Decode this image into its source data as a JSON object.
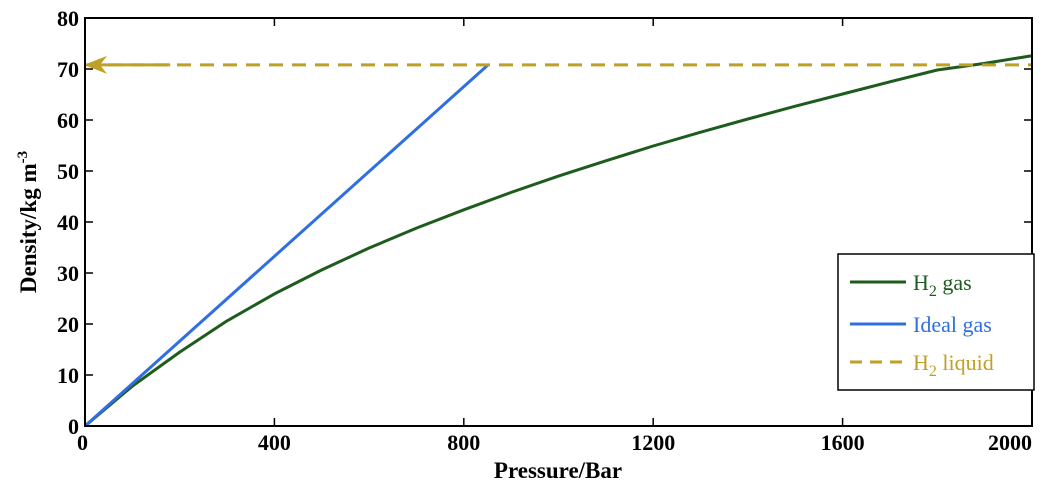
{
  "chart_data": {
    "type": "line",
    "xlabel": "Pressure/Bar",
    "ylabel_main": "Density/kg m",
    "ylabel_sup": "-3",
    "xlim": [
      0,
      2000
    ],
    "ylim": [
      0,
      80
    ],
    "x_ticks": [
      0,
      400,
      800,
      1200,
      1600,
      2000
    ],
    "y_ticks": [
      0,
      10,
      20,
      30,
      40,
      50,
      60,
      70,
      80
    ],
    "grid": false,
    "legend_position": "right",
    "series": [
      {
        "name_main": "H",
        "name_sub": "2",
        "name_rest": " gas",
        "color": "#1e5c1e",
        "style": "solid",
        "x": [
          0,
          100,
          200,
          300,
          400,
          500,
          600,
          700,
          800,
          900,
          1000,
          1100,
          1200,
          1300,
          1400,
          1500,
          1600,
          1700,
          1800,
          1900,
          2000
        ],
        "y": [
          0,
          7.8,
          14.5,
          20.6,
          25.9,
          30.6,
          34.9,
          38.8,
          42.4,
          45.8,
          49.0,
          52.0,
          54.9,
          57.6,
          60.2,
          62.7,
          65.1,
          67.5,
          69.8,
          71.1,
          72.6
        ]
      },
      {
        "name_main": "Ideal gas",
        "name_sub": "",
        "name_rest": "",
        "color": "#2f6fe0",
        "style": "solid",
        "x": [
          0,
          850
        ],
        "y": [
          0,
          70.7
        ]
      },
      {
        "name_main": "H",
        "name_sub": "2",
        "name_rest": " liquid",
        "color": "#bfa026",
        "style": "dashed",
        "x": [
          0,
          2000
        ],
        "y": [
          70.8,
          70.8
        ]
      }
    ],
    "annotation": {
      "type": "arrow",
      "color": "#bfa026",
      "from_x": 180,
      "to_x": 0,
      "y": 70.8
    }
  }
}
